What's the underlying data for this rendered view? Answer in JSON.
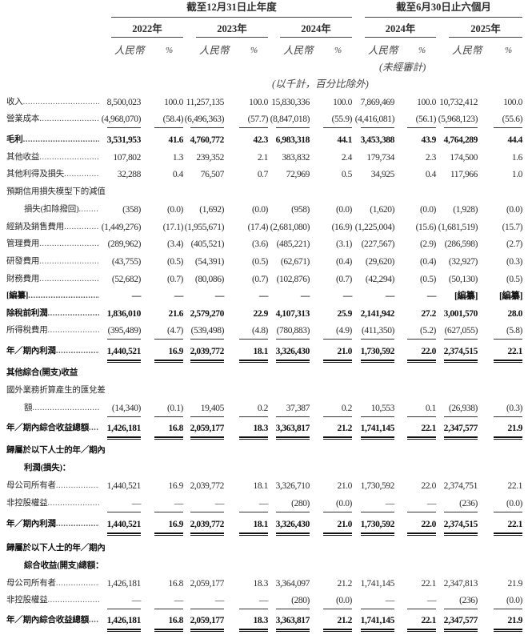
{
  "header": {
    "group_full_year": "截至12月31日止年度",
    "group_six_months": "截至6月30日止六個月",
    "years": [
      "2022年",
      "2023年",
      "2024年",
      "2024年",
      "2025年"
    ],
    "currency_label": "人民幣",
    "percent_label": "%",
    "unaudited_note": "(未經審計)",
    "units_note": "(以千計，百分比除外)"
  },
  "rows": [
    {
      "label": "收入",
      "values": [
        "8,500,023",
        "100.0",
        "11,257,135",
        "100.0",
        "15,830,336",
        "100.0",
        "7,869,469",
        "100.0",
        "10,732,412",
        "100.0"
      ]
    },
    {
      "label": "營業成本",
      "underline": "single",
      "values": [
        "(4,968,070)",
        "(58.4)",
        "(6,496,363)",
        "(57.7)",
        "(8,847,018)",
        "(55.9)",
        "(4,416,081)",
        "(56.1)",
        "(5,968,123)",
        "(55.6)"
      ]
    },
    {
      "label": "毛利",
      "bold": true,
      "values": [
        "3,531,953",
        "41.6",
        "4,760,772",
        "42.3",
        "6,983,318",
        "44.1",
        "3,453,388",
        "43.9",
        "4,764,289",
        "44.4"
      ]
    },
    {
      "label": "其他收益",
      "values": [
        "107,802",
        "1.3",
        "239,352",
        "2.1",
        "383,832",
        "2.4",
        "179,734",
        "2.3",
        "174,500",
        "1.6"
      ]
    },
    {
      "label": "其他利得及損失",
      "values": [
        "32,288",
        "0.4",
        "76,507",
        "0.7",
        "72,969",
        "0.5",
        "34,925",
        "0.4",
        "117,966",
        "1.0"
      ]
    },
    {
      "label": "預期信用損失模型下的減值",
      "nodots": true,
      "values": []
    },
    {
      "label": "損失(扣除撥回)",
      "indent": true,
      "values": [
        "(358)",
        "(0.0)",
        "(1,692)",
        "(0.0)",
        "(958)",
        "(0.0)",
        "(1,620)",
        "(0.0)",
        "(1,928)",
        "(0.0)"
      ]
    },
    {
      "label": "經銷及銷售費用",
      "values": [
        "(1,449,276)",
        "(17.1)",
        "(1,955,671)",
        "(17.4)",
        "(2,681,080)",
        "(16.9)",
        "(1,225,004)",
        "(15.6)",
        "(1,681,519)",
        "(15.7)"
      ]
    },
    {
      "label": "管理費用",
      "values": [
        "(289,962)",
        "(3.4)",
        "(405,521)",
        "(3.6)",
        "(485,221)",
        "(3.1)",
        "(227,567)",
        "(2.9)",
        "(286,598)",
        "(2.7)"
      ]
    },
    {
      "label": "研發費用",
      "values": [
        "(43,755)",
        "(0.5)",
        "(54,391)",
        "(0.5)",
        "(62,671)",
        "(0.4)",
        "(29,620)",
        "(0.4)",
        "(32,927)",
        "(0.3)"
      ]
    },
    {
      "label": "財務費用",
      "values": [
        "(52,682)",
        "(0.7)",
        "(80,086)",
        "(0.7)",
        "(102,876)",
        "(0.7)",
        "(42,294)",
        "(0.5)",
        "(50,130)",
        "(0.5)"
      ]
    },
    {
      "label": "[編纂]",
      "bold": true,
      "values": [
        "—",
        "—",
        "—",
        "—",
        "—",
        "—",
        "—",
        "—",
        "[編纂]",
        "[編纂]"
      ]
    },
    {
      "label": "除稅前利潤",
      "bold": true,
      "values": [
        "1,836,010",
        "21.6",
        "2,579,270",
        "22.9",
        "4,107,313",
        "25.9",
        "2,141,942",
        "27.2",
        "3,001,570",
        "28.0"
      ]
    },
    {
      "label": "所得稅費用",
      "underline": "single",
      "values": [
        "(395,489)",
        "(4.7)",
        "(539,498)",
        "(4.8)",
        "(780,883)",
        "(4.9)",
        "(411,350)",
        "(5.2)",
        "(627,055)",
        "(5.8)"
      ]
    },
    {
      "label": "年／期內利潤",
      "bold": true,
      "underline": "double",
      "values": [
        "1,440,521",
        "16.9",
        "2,039,772",
        "18.1",
        "3,326,430",
        "21.0",
        "1,730,592",
        "22.0",
        "2,374,515",
        "22.1"
      ]
    },
    {
      "label": "其他綜合(開支)收益",
      "bold": true,
      "nodots": true,
      "values": []
    },
    {
      "label": "國外業務折算產生的匯兌差",
      "nodots": true,
      "values": []
    },
    {
      "label": "額",
      "indent": true,
      "underline": "single",
      "values": [
        "(14,340)",
        "(0.1)",
        "19,405",
        "0.2",
        "37,387",
        "0.2",
        "10,553",
        "0.1",
        "(26,938)",
        "(0.3)"
      ]
    },
    {
      "label": "年／期內綜合收益總額",
      "bold": true,
      "underline": "double",
      "values": [
        "1,426,181",
        "16.8",
        "2,059,177",
        "18.3",
        "3,363,817",
        "21.2",
        "1,741,145",
        "22.1",
        "2,347,577",
        "21.9"
      ]
    },
    {
      "label": "歸屬於以下人士的年／期內",
      "bold": true,
      "nodots": true,
      "values": []
    },
    {
      "label": "利潤(損失)：",
      "bold": true,
      "indent": true,
      "nodots": true,
      "values": []
    },
    {
      "label": "母公司所有者",
      "values": [
        "1,440,521",
        "16.9",
        "2,039,772",
        "18.1",
        "3,326,710",
        "21.0",
        "1,730,592",
        "22.0",
        "2,374,751",
        "22.1"
      ]
    },
    {
      "label": "非控股權益",
      "underline": "single",
      "values": [
        "—",
        "—",
        "—",
        "—",
        "(280)",
        "(0.0)",
        "—",
        "—",
        "(236)",
        "(0.0)"
      ]
    },
    {
      "label": "年／期內利潤",
      "bold": true,
      "underline": "double",
      "values": [
        "1,440,521",
        "16.9",
        "2,039,772",
        "18.1",
        "3,326,430",
        "21.0",
        "1,730,592",
        "22.0",
        "2,374,515",
        "22.1"
      ]
    },
    {
      "label": "歸屬於以下人士的年／期內",
      "bold": true,
      "nodots": true,
      "values": []
    },
    {
      "label": "綜合收益(開支)總額：",
      "bold": true,
      "indent": true,
      "nodots": true,
      "values": []
    },
    {
      "label": "母公司所有者",
      "values": [
        "1,426,181",
        "16.8",
        "2,059,177",
        "18.3",
        "3,364,097",
        "21.2",
        "1,741,145",
        "22.1",
        "2,347,813",
        "21.9"
      ]
    },
    {
      "label": "非控股權益",
      "underline": "single",
      "values": [
        "—",
        "—",
        "—",
        "—",
        "(280)",
        "(0.0)",
        "—",
        "—",
        "(236)",
        "(0.0)"
      ]
    },
    {
      "label": "年／期內綜合收益總額",
      "bold": true,
      "underline": "double",
      "values": [
        "1,426,181",
        "16.8",
        "2,059,177",
        "18.3",
        "3,363,817",
        "21.2",
        "1,741,145",
        "22.1",
        "2,347,577",
        "21.9"
      ]
    }
  ]
}
